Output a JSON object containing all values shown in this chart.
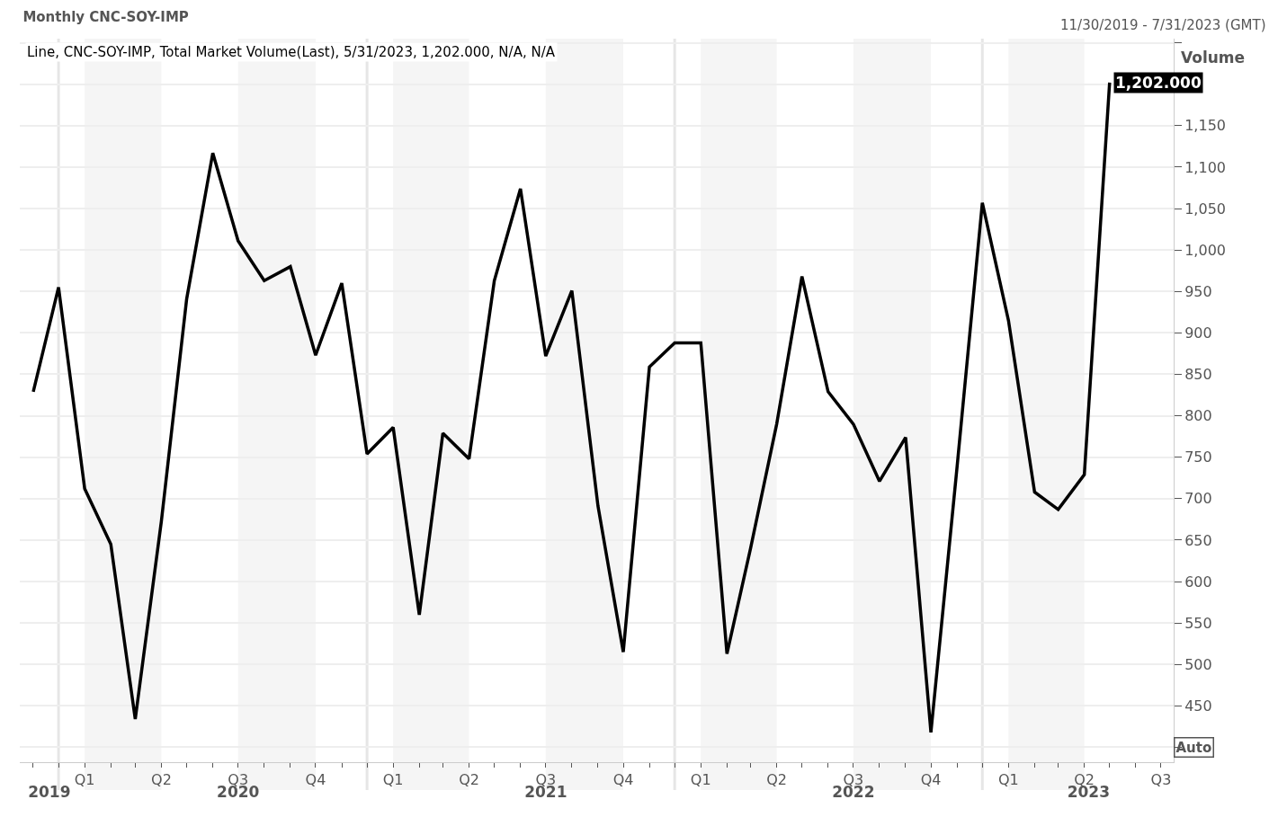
{
  "chart_data": {
    "type": "line",
    "title": "Monthly CNC-SOY-IMP",
    "ylabel": "Volume",
    "annotations": [
      "Line, CNC-SOY-IMP, Total Market Volume(Last), 5/31/2023, 1,202.000, N/A, N/A",
      "11/30/2019 - 7/31/2023 (GMT)",
      "Auto"
    ],
    "x": [
      "2019-11",
      "2019-12",
      "2020-01",
      "2020-02",
      "2020-03",
      "2020-04",
      "2020-05",
      "2020-06",
      "2020-07",
      "2020-08",
      "2020-09",
      "2020-10",
      "2020-11",
      "2020-12",
      "2021-01",
      "2021-02",
      "2021-03",
      "2021-04",
      "2021-05",
      "2021-06",
      "2021-07",
      "2021-08",
      "2021-09",
      "2021-10",
      "2021-11",
      "2021-12",
      "2022-01",
      "2022-02",
      "2022-03",
      "2022-04",
      "2022-05",
      "2022-06",
      "2022-07",
      "2022-08",
      "2022-09",
      "2022-10",
      "2022-11",
      "2022-12",
      "2023-01",
      "2023-02",
      "2023-03",
      "2023-04",
      "2023-05"
    ],
    "series": [
      {
        "color": "#000000",
        "values": [
          829,
          955,
          712,
          645,
          434,
          673,
          941,
          1117,
          1011,
          963,
          980,
          873,
          960,
          754,
          786,
          560,
          779,
          748,
          963,
          1074,
          872,
          951,
          691,
          515,
          859,
          888,
          888,
          513,
          640,
          790,
          968,
          829,
          790,
          721,
          774,
          418,
          738,
          1057,
          915,
          708,
          687,
          729,
          1202
        ],
        "value_labels": [
          null,
          null,
          null,
          null,
          null,
          null,
          null,
          null,
          null,
          null,
          null,
          null,
          null,
          null,
          null,
          null,
          null,
          null,
          null,
          null,
          null,
          null,
          null,
          null,
          null,
          null,
          null,
          null,
          null,
          null,
          null,
          null,
          null,
          null,
          null,
          null,
          null,
          null,
          null,
          null,
          null,
          null,
          "1,202.000"
        ]
      }
    ],
    "marker": "none",
    "line_style": "solid",
    "grid": "y",
    "xlim": [
      "2019-10-16",
      "2023-07-16"
    ],
    "xticks": [
      {
        "value": "2019-11",
        "label": null
      },
      {
        "value": "2019-12",
        "label": null
      },
      {
        "value": "2020-01",
        "label": "Q1"
      },
      {
        "value": "2020-02",
        "label": null
      },
      {
        "value": "2020-03",
        "label": null
      },
      {
        "value": "2020-04",
        "label": "Q2"
      },
      {
        "value": "2020-05",
        "label": null
      },
      {
        "value": "2020-06",
        "label": null
      },
      {
        "value": "2020-07",
        "label": "Q3"
      },
      {
        "value": "2020-08",
        "label": null
      },
      {
        "value": "2020-09",
        "label": null
      },
      {
        "value": "2020-10",
        "label": "Q4"
      },
      {
        "value": "2020-11",
        "label": null
      },
      {
        "value": "2020-12",
        "label": null
      },
      {
        "value": "2021-01",
        "label": "Q1"
      },
      {
        "value": "2021-02",
        "label": null
      },
      {
        "value": "2021-03",
        "label": null
      },
      {
        "value": "2021-04",
        "label": "Q2"
      },
      {
        "value": "2021-05",
        "label": null
      },
      {
        "value": "2021-06",
        "label": null
      },
      {
        "value": "2021-07",
        "label": "Q3"
      },
      {
        "value": "2021-08",
        "label": null
      },
      {
        "value": "2021-09",
        "label": null
      },
      {
        "value": "2021-10",
        "label": "Q4"
      },
      {
        "value": "2021-11",
        "label": null
      },
      {
        "value": "2021-12",
        "label": null
      },
      {
        "value": "2022-01",
        "label": "Q1"
      },
      {
        "value": "2022-02",
        "label": null
      },
      {
        "value": "2022-03",
        "label": null
      },
      {
        "value": "2022-04",
        "label": "Q2"
      },
      {
        "value": "2022-05",
        "label": null
      },
      {
        "value": "2022-06",
        "label": null
      },
      {
        "value": "2022-07",
        "label": "Q3"
      },
      {
        "value": "2022-08",
        "label": null
      },
      {
        "value": "2022-09",
        "label": null
      },
      {
        "value": "2022-10",
        "label": "Q4"
      },
      {
        "value": "2022-11",
        "label": null
      },
      {
        "value": "2022-12",
        "label": null
      },
      {
        "value": "2023-01",
        "label": "Q1"
      },
      {
        "value": "2023-02",
        "label": null
      },
      {
        "value": "2023-03",
        "label": null
      },
      {
        "value": "2023-04",
        "label": "Q2"
      },
      {
        "value": "2023-05",
        "label": null
      },
      {
        "value": "2023-06",
        "label": null
      },
      {
        "value": "2023-07",
        "label": "Q3"
      }
    ],
    "x2lim": [
      "2019-10-16",
      "2023-07-16"
    ],
    "x2ticks": [
      {
        "value": "2019-11-20",
        "label": "2019"
      },
      {
        "value": "2020-07",
        "label": "2020"
      },
      {
        "value": "2021-07",
        "label": "2021"
      },
      {
        "value": "2022-07",
        "label": "2022"
      },
      {
        "value": "2023-04-06",
        "label": "2023"
      }
    ],
    "ylim": [
      382,
      1255
    ],
    "yticks": [
      {
        "value": 400,
        "label": null
      },
      450,
      {
        "value": 500,
        "label": "500"
      },
      550,
      600,
      650,
      700,
      750,
      800,
      850,
      900,
      950,
      {
        "value": 1000,
        "label": "1,000"
      },
      {
        "value": 1050,
        "label": "1,050"
      },
      {
        "value": 1100,
        "label": "1,100"
      },
      {
        "value": 1150,
        "label": "1,150"
      },
      {
        "value": 1200,
        "label": null
      },
      {
        "value": 1250,
        "label": null
      }
    ],
    "bands": [
      {
        "axis": "x",
        "from": "2020-01",
        "to": "2020-04",
        "color": "#f5f5f5"
      },
      {
        "axis": "x",
        "from": "2020-07",
        "to": "2020-10",
        "color": "#f5f5f5"
      },
      {
        "axis": "x",
        "from": "2021-01",
        "to": "2021-04",
        "color": "#f5f5f5"
      },
      {
        "axis": "x",
        "from": "2021-07",
        "to": "2021-10",
        "color": "#f5f5f5"
      },
      {
        "axis": "x",
        "from": "2022-01",
        "to": "2022-04",
        "color": "#f5f5f5"
      },
      {
        "axis": "x",
        "from": "2022-07",
        "to": "2022-10",
        "color": "#f5f5f5"
      },
      {
        "axis": "x",
        "from": "2023-01",
        "to": "2023-04",
        "color": "#f5f5f5"
      }
    ],
    "ref_lines": [
      {
        "axis": "x",
        "value": "2019-12",
        "color": "#e6e6e6"
      },
      {
        "axis": "x",
        "value": "2020-12",
        "color": "#e6e6e6"
      },
      {
        "axis": "x",
        "value": "2021-12",
        "color": "#e6e6e6"
      },
      {
        "axis": "x",
        "value": "2022-12",
        "color": "#e6e6e6"
      }
    ]
  }
}
